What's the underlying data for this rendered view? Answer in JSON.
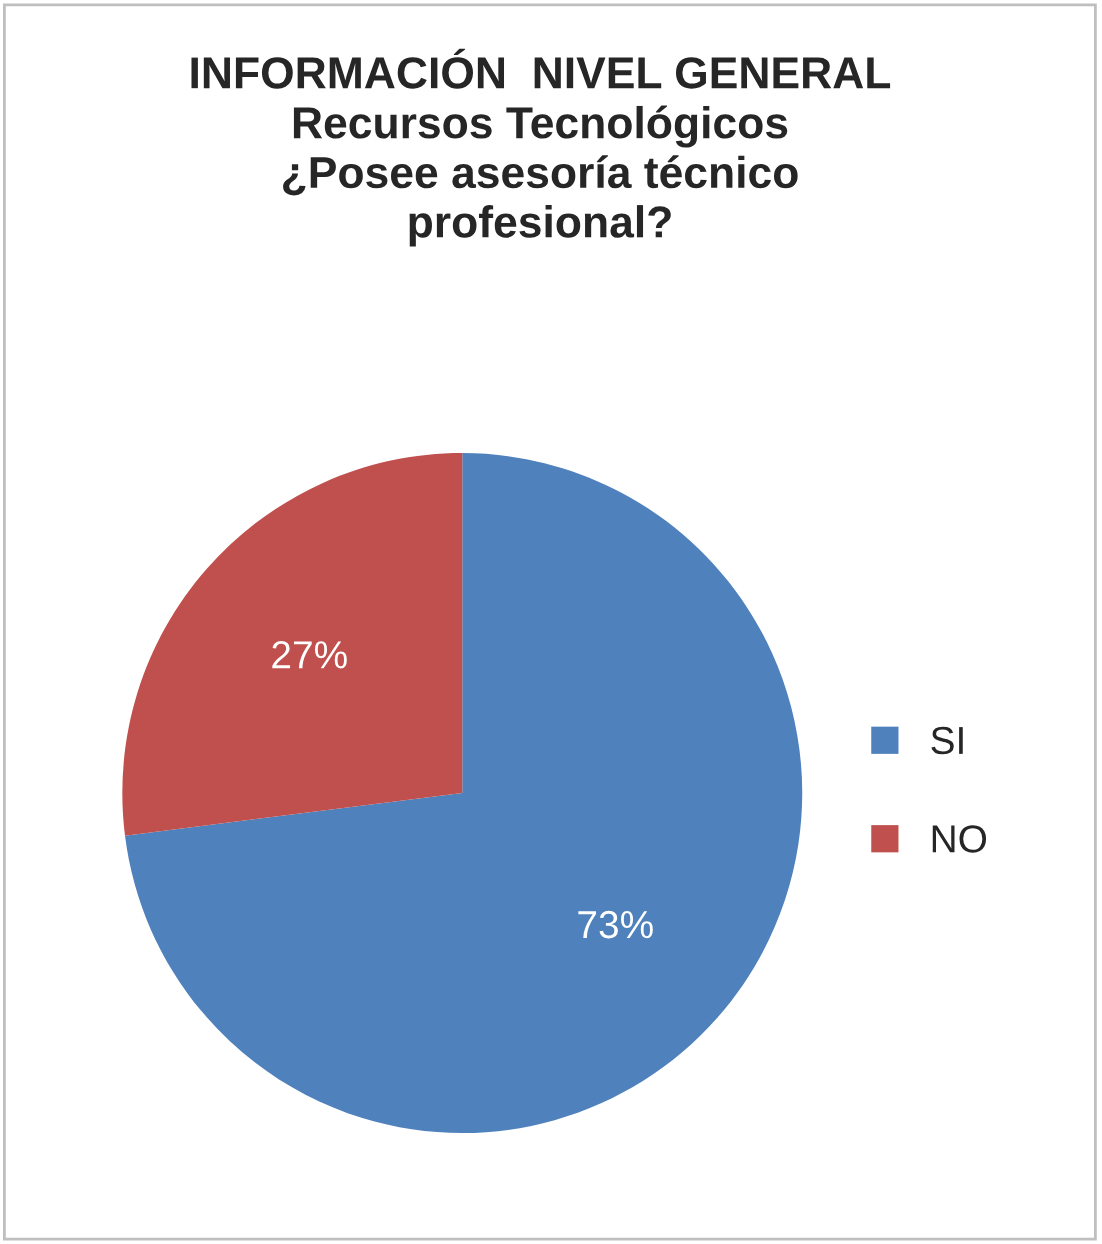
{
  "chart_data": {
    "type": "pie",
    "title": "INFORMACIÓN  NIVEL GENERAL\nRecursos Tecnológicos\n¿Posee asesoría técnico\nprofesional?",
    "categories": [
      "SI",
      "NO"
    ],
    "values": [
      73,
      27
    ],
    "colors": [
      "#4f81bd",
      "#c0504d"
    ],
    "value_labels": [
      "73%",
      "27%"
    ],
    "legend": "right"
  }
}
